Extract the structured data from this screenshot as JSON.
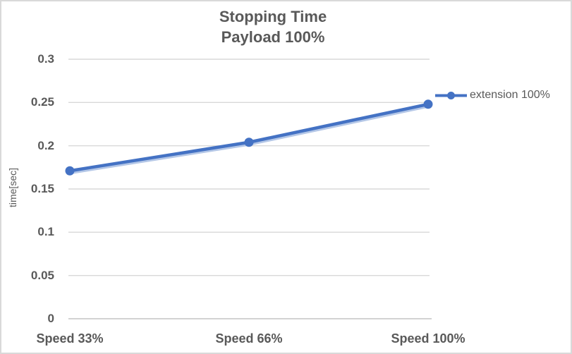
{
  "chart_data": {
    "type": "line",
    "title": "Stopping Time",
    "subtitle": "Payload 100%",
    "categories": [
      "Speed 33%",
      "Speed 66%",
      "Speed 100%"
    ],
    "series": [
      {
        "name": "extension 100%",
        "values": [
          0.171,
          0.204,
          0.248
        ]
      }
    ],
    "xlabel": "",
    "ylabel": "time[sec]",
    "ylim": [
      0,
      0.3
    ],
    "ytick_step": 0.05,
    "ytick_labels": [
      "0.3",
      "0.25",
      "0.2",
      "0.15",
      "0.1",
      "0.05",
      "0"
    ],
    "grid": "horizontal",
    "legend_position": "right",
    "marker": "circle",
    "colors": {
      "series": "#4472C4",
      "series_shadow": "#B4C7E7",
      "gridline": "#D9D9D9",
      "axis_line": "#C3C3C3",
      "text": "#595959",
      "border": "#D9D9D9",
      "background": "#FFFFFF"
    }
  }
}
